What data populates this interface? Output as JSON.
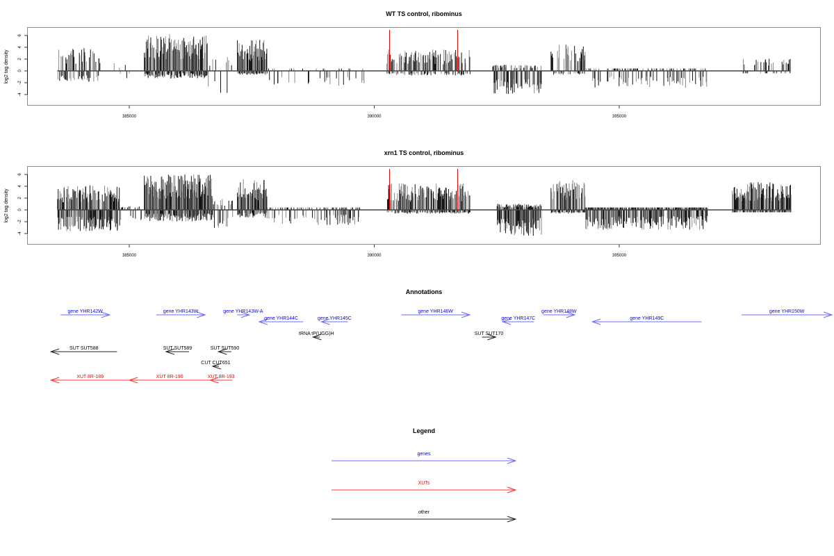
{
  "colors": {
    "genes": "#0000ff",
    "xuts": "#ff0000",
    "other": "#000000",
    "marker": "#ff0000"
  },
  "chart_data": [
    {
      "type": "bar",
      "title": "WT TS control, ribominus",
      "xlabel": "",
      "ylabel": "log2 tag density",
      "xlim": [
        383000,
        399400
      ],
      "ylim": [
        -5.8,
        7.2
      ],
      "xticks": [
        385000,
        390000,
        395000
      ],
      "xtick_labels": [
        "385000",
        "390000",
        "395000"
      ],
      "yticks": [
        -4,
        -2,
        0,
        2,
        4,
        6
      ],
      "ytick_labels": [
        "-4",
        "-2",
        "0",
        "2",
        "4",
        "6"
      ],
      "markers": [
        390300,
        391690
      ],
      "series": [
        {
          "name": "coverage",
          "regions": [
            {
              "start": 383530,
              "end": 384400,
              "pos": 3.0,
              "neg": 1.5,
              "density": 0.45
            },
            {
              "start": 384600,
              "end": 385000,
              "pos": 1.0,
              "neg": 1.0,
              "density": 0.1
            },
            {
              "start": 385300,
              "end": 386600,
              "pos": 4.8,
              "neg": 1.0,
              "density": 0.9
            },
            {
              "start": 386600,
              "end": 387100,
              "pos": 2.0,
              "neg": 3.0,
              "density": 0.15
            },
            {
              "start": 387200,
              "end": 387800,
              "pos": 4.2,
              "neg": 0.5,
              "density": 0.9
            },
            {
              "start": 387800,
              "end": 389800,
              "pos": 0.3,
              "neg": 2.0,
              "density": 0.12
            },
            {
              "start": 390250,
              "end": 391950,
              "pos": 2.8,
              "neg": 0.6,
              "density": 0.55
            },
            {
              "start": 392400,
              "end": 393400,
              "pos": 0.8,
              "neg": 3.0,
              "density": 0.6
            },
            {
              "start": 393600,
              "end": 394300,
              "pos": 3.5,
              "neg": 0.5,
              "density": 0.5
            },
            {
              "start": 394300,
              "end": 396800,
              "pos": 0.3,
              "neg": 2.2,
              "density": 0.3
            },
            {
              "start": 397500,
              "end": 398500,
              "pos": 1.6,
              "neg": 0.3,
              "density": 0.25
            }
          ]
        }
      ]
    },
    {
      "type": "bar",
      "title": "xrn1 TS control, ribominus",
      "xlabel": "",
      "ylabel": "log2 tag density",
      "xlim": [
        383000,
        399400
      ],
      "ylim": [
        -5.8,
        7.2
      ],
      "xticks": [
        385000,
        390000,
        395000
      ],
      "xtick_labels": [
        "385000",
        "390000",
        "395000"
      ],
      "yticks": [
        -4,
        -2,
        0,
        2,
        4,
        6
      ],
      "ytick_labels": [
        "-4",
        "-2",
        "0",
        "2",
        "4",
        "6"
      ],
      "markers": [
        390300,
        391690
      ],
      "series": [
        {
          "name": "coverage",
          "regions": [
            {
              "start": 383530,
              "end": 384800,
              "pos": 3.2,
              "neg": 2.8,
              "density": 0.85
            },
            {
              "start": 384800,
              "end": 385300,
              "pos": 0.5,
              "neg": 1.5,
              "density": 0.25
            },
            {
              "start": 385300,
              "end": 386700,
              "pos": 4.6,
              "neg": 1.5,
              "density": 1.0
            },
            {
              "start": 386700,
              "end": 387100,
              "pos": 1.5,
              "neg": 2.5,
              "density": 0.4
            },
            {
              "start": 387200,
              "end": 387800,
              "pos": 4.0,
              "neg": 1.0,
              "density": 0.95
            },
            {
              "start": 387800,
              "end": 389700,
              "pos": 0.3,
              "neg": 2.0,
              "density": 0.35
            },
            {
              "start": 390250,
              "end": 391950,
              "pos": 3.5,
              "neg": 0.5,
              "density": 0.75
            },
            {
              "start": 392500,
              "end": 393400,
              "pos": 0.8,
              "neg": 3.4,
              "density": 0.95
            },
            {
              "start": 393600,
              "end": 394300,
              "pos": 4.0,
              "neg": 0.5,
              "density": 0.8
            },
            {
              "start": 394300,
              "end": 396800,
              "pos": 0.3,
              "neg": 2.6,
              "density": 0.85
            },
            {
              "start": 397300,
              "end": 398500,
              "pos": 3.6,
              "neg": 0.3,
              "density": 0.9
            }
          ]
        }
      ]
    }
  ],
  "annotations": {
    "title": "Annotations",
    "items": [
      {
        "label": "gene YHR142W",
        "type": "genes",
        "start": 383600,
        "end": 384600,
        "dir": "right",
        "row": 0
      },
      {
        "label": "gene YHR143W",
        "type": "genes",
        "start": 385550,
        "end": 386550,
        "dir": "right",
        "row": 0
      },
      {
        "label": "gene YHR143W-A",
        "type": "genes",
        "start": 387200,
        "end": 387450,
        "dir": "right",
        "row": 0
      },
      {
        "label": "gene YHR144C",
        "type": "genes",
        "start": 387650,
        "end": 388550,
        "dir": "left",
        "row": 1
      },
      {
        "label": "gene YHR145C",
        "type": "genes",
        "start": 388920,
        "end": 389460,
        "dir": "left",
        "row": 1
      },
      {
        "label": "gene YHR146W",
        "type": "genes",
        "start": 390550,
        "end": 391950,
        "dir": "right",
        "row": 0
      },
      {
        "label": "gene YHR147C",
        "type": "genes",
        "start": 392620,
        "end": 393260,
        "dir": "left",
        "row": 1
      },
      {
        "label": "gene YHR148W",
        "type": "genes",
        "start": 393450,
        "end": 394090,
        "dir": "right",
        "row": 0
      },
      {
        "label": "gene YHR149C",
        "type": "genes",
        "start": 394450,
        "end": 396680,
        "dir": "left",
        "row": 1
      },
      {
        "label": "gene YHR150W",
        "type": "genes",
        "start": 397500,
        "end": 399420,
        "dir": "right",
        "row": 0
      },
      {
        "label": "tRNA tP(UGG)H",
        "type": "other",
        "start": 388750,
        "end": 388890,
        "dir": "left",
        "row": 2
      },
      {
        "label": "SUT SUT588",
        "type": "other",
        "start": 383400,
        "end": 384750,
        "dir": "left",
        "row": 3
      },
      {
        "label": "SUT SUT589",
        "type": "other",
        "start": 385750,
        "end": 386220,
        "dir": "left",
        "row": 3
      },
      {
        "label": "SUT SUT590",
        "type": "other",
        "start": 386820,
        "end": 387080,
        "dir": "left",
        "row": 3
      },
      {
        "label": "SUT SUT170",
        "type": "other",
        "start": 392200,
        "end": 392480,
        "dir": "right",
        "row": 2
      },
      {
        "label": "CUT CUT651",
        "type": "other",
        "start": 386700,
        "end": 386830,
        "dir": "left",
        "row": 4
      },
      {
        "label": "XUT 8R-189",
        "type": "xuts",
        "start": 383400,
        "end": 385000,
        "dir": "left",
        "row": 5
      },
      {
        "label": "XUT 8R-190",
        "type": "xuts",
        "start": 385000,
        "end": 386650,
        "dir": "left",
        "row": 5
      },
      {
        "label": "XUT 8R-193",
        "type": "xuts",
        "start": 386650,
        "end": 387100,
        "dir": "left",
        "row": 5
      }
    ]
  },
  "legend": {
    "title": "Legend",
    "items": [
      {
        "label": "genes",
        "type": "genes"
      },
      {
        "label": "XUTs",
        "type": "xuts"
      },
      {
        "label": "other",
        "type": "other"
      }
    ]
  }
}
